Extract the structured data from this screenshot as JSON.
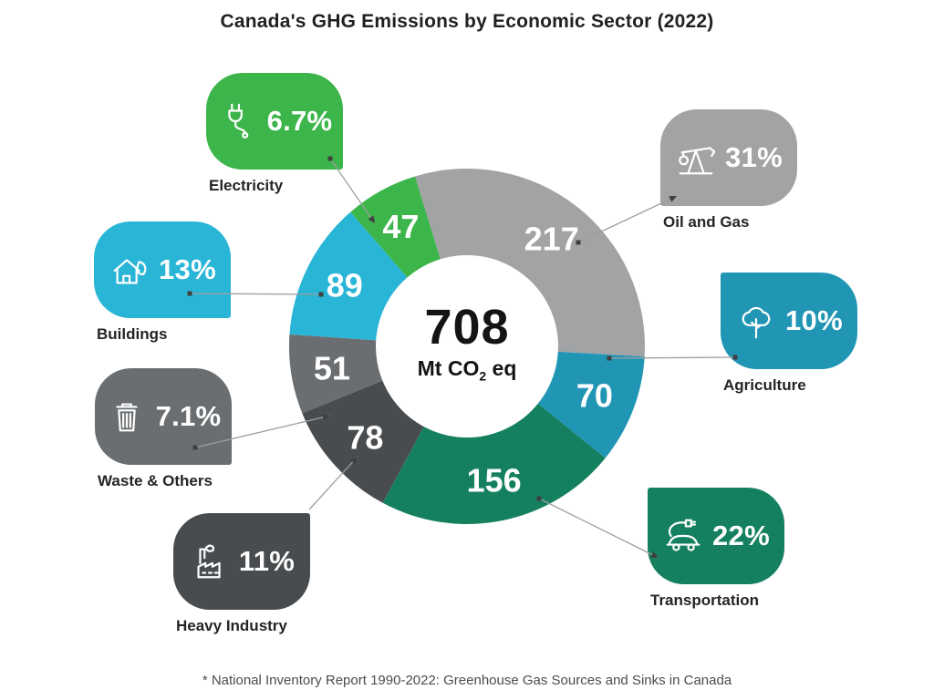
{
  "title": "Canada's GHG Emissions by Economic Sector (2022)",
  "center": {
    "value": "708",
    "unit_main": "Mt CO",
    "unit_sub": "2",
    "unit_tail": " eq"
  },
  "footnote": "* National Inventory Report 1990-2022: Greenhouse Gas Sources and Sinks in Canada",
  "chart_data": {
    "type": "pie",
    "subtype": "donut",
    "title": "Canada's GHG Emissions by Economic Sector (2022)",
    "total": 708,
    "units": "Mt CO2 eq",
    "center_label": "708 Mt CO2 eq",
    "start_angle_deg": -17,
    "direction": "clockwise",
    "segments": [
      {
        "sector": "Oil and Gas",
        "value": 217,
        "percent": "31%",
        "color": "#a1a3a5",
        "icon": "pumpjack-icon"
      },
      {
        "sector": "Agriculture",
        "value": 70,
        "percent": "10%",
        "color": "#2196b4",
        "icon": "tree-icon"
      },
      {
        "sector": "Transportation",
        "value": 156,
        "percent": "22%",
        "color": "#15805f",
        "icon": "electric-car-icon"
      },
      {
        "sector": "Heavy Industry",
        "value": 78,
        "percent": "11%",
        "color": "#494c4f",
        "icon": "factory-icon"
      },
      {
        "sector": "Waste & Others",
        "value": 51,
        "percent": "7.1%",
        "color": "#6b6e71",
        "icon": "trash-icon"
      },
      {
        "sector": "Buildings",
        "value": 89,
        "percent": "13%",
        "color": "#29b5d6",
        "icon": "house-leaf-icon"
      },
      {
        "sector": "Electricity",
        "value": 47,
        "percent": "6.7%",
        "color": "#3cb54a",
        "icon": "plug-icon"
      }
    ]
  }
}
